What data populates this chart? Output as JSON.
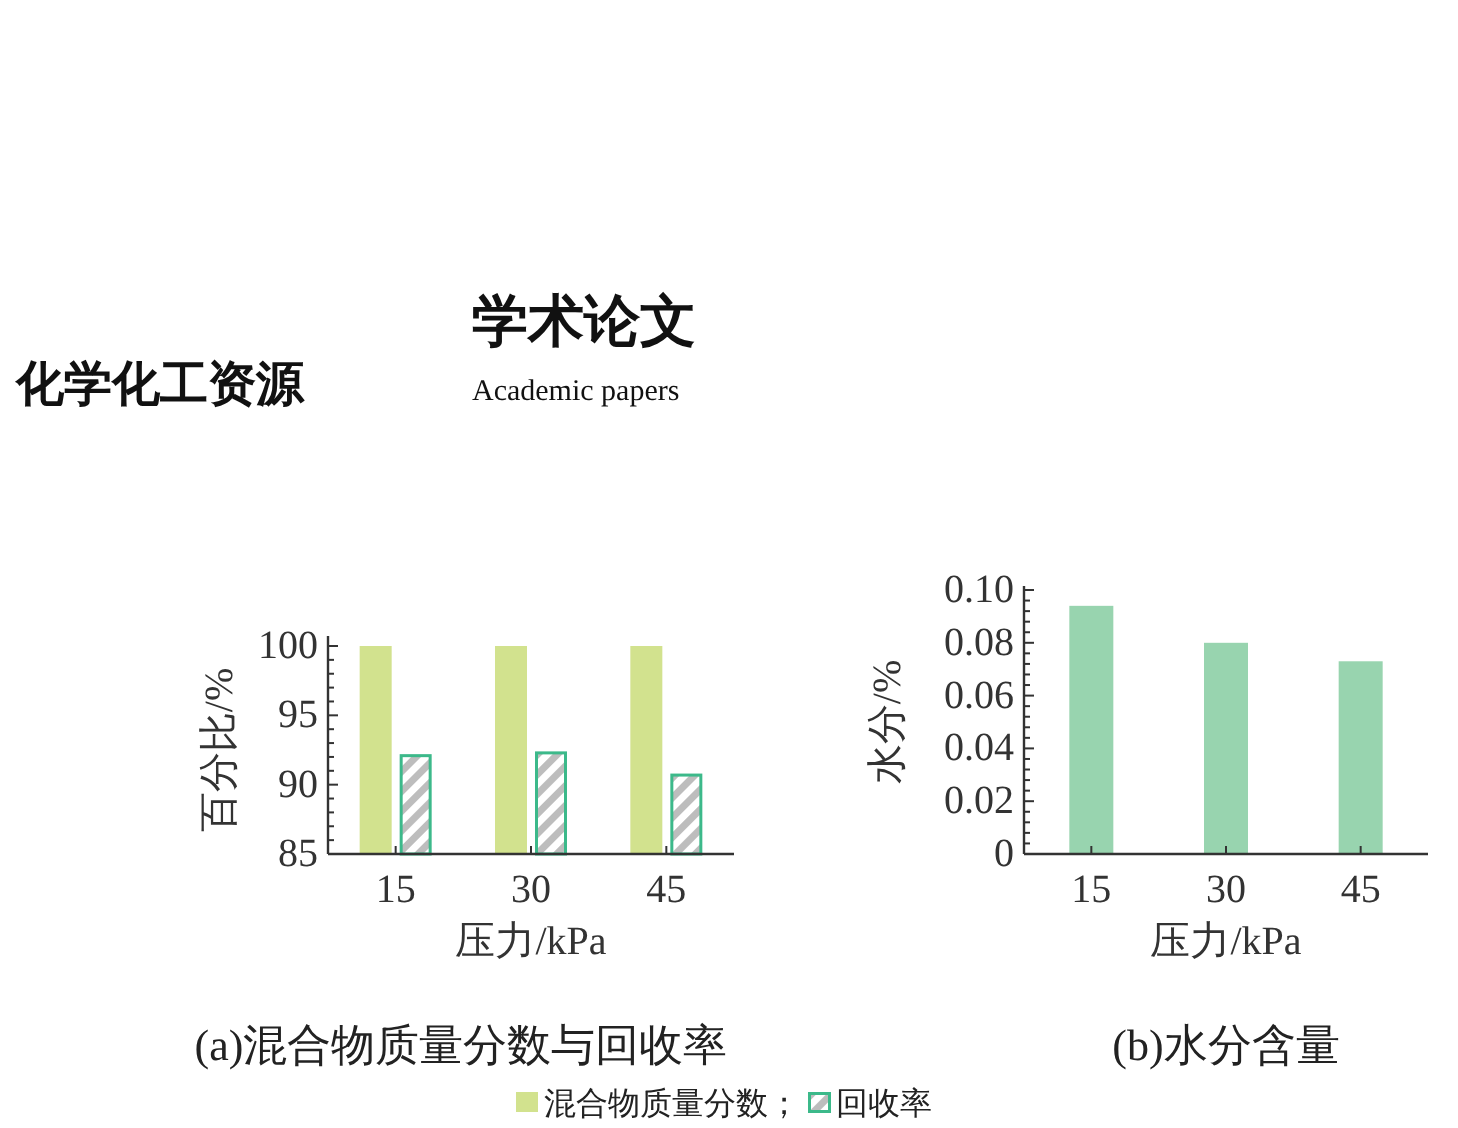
{
  "chart_data": [
    {
      "type": "bar",
      "title": "(a)混合物质量分数与回收率",
      "xlabel": "压力/kPa",
      "ylabel": "百分比/%",
      "categories": [
        "15",
        "30",
        "45"
      ],
      "series": [
        {
          "name": "混合物质量分数；",
          "color": "#d2e28e",
          "values": [
            100,
            100,
            100
          ]
        },
        {
          "name": "回收率",
          "color": "#3cb98a",
          "values": [
            92.2,
            92.4,
            90.8
          ]
        }
      ],
      "ylim": [
        85,
        100
      ],
      "yticks": [
        85,
        90,
        95,
        100
      ],
      "grid": false,
      "legend": "bottom",
      "annotations": [
        "化学化工资源",
        "学术论文",
        "Academic papers"
      ]
    },
    {
      "type": "bar",
      "title": "(b)水分含量",
      "xlabel": "压力/kPa",
      "ylabel": "水分/%",
      "categories": [
        "15",
        "30",
        "45"
      ],
      "series": [
        {
          "color": "#98d4af",
          "values": [
            0.094,
            0.08,
            0.073
          ]
        }
      ],
      "ylim": [
        0,
        0.1
      ],
      "yticks": [
        {
          "value": 0,
          "label": "0"
        },
        {
          "value": 0.02,
          "label": "0.02"
        },
        {
          "value": 0.04,
          "label": "0.04"
        },
        {
          "value": 0.06,
          "label": "0.06"
        },
        {
          "value": 0.08,
          "label": "0.08"
        },
        {
          "value": 0.1,
          "label": "0.10"
        }
      ],
      "grid": false,
      "legend": false
    }
  ]
}
